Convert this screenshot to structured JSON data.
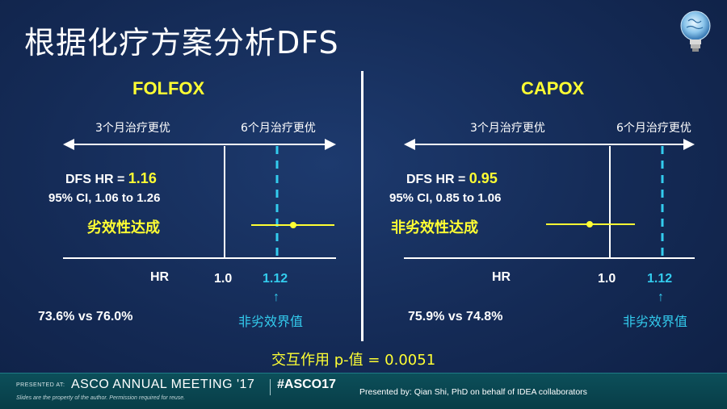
{
  "slide": {
    "title": "根据化疗方案分析DFS",
    "interaction": "交互作用 p-值 = 0.0051"
  },
  "colors": {
    "background": "#142a55",
    "highlight": "#ffff33",
    "threshold": "#33ccee",
    "text": "#ffffff",
    "footer": "#0c4f5a"
  },
  "panels": [
    {
      "title": "FOLFOX",
      "left_arrow_label": "3个月治疗更优",
      "right_arrow_label": "6个月治疗更优",
      "hr_prefix": "DFS HR = ",
      "hr_value": "1.16",
      "ci": "95% CI, 1.06 to 1.26",
      "result": "劣效性达成",
      "axis_label": "HR",
      "reference_value": "1.0",
      "threshold_value": "1.12",
      "threshold_arrow": "↑",
      "threshold_label": "非劣效界值",
      "rates": "73.6% vs 76.0%"
    },
    {
      "title": "CAPOX",
      "left_arrow_label": "3个月治疗更优",
      "right_arrow_label": "6个月治疗更优",
      "hr_prefix": "DFS HR = ",
      "hr_value": "0.95",
      "ci": "95% CI, 0.85 to 1.06",
      "result": "非劣效性达成",
      "axis_label": "HR",
      "reference_value": "1.0",
      "threshold_value": "1.12",
      "threshold_arrow": "↑",
      "threshold_label": "非劣效界值",
      "rates": "75.9% vs 74.8%"
    }
  ],
  "footer": {
    "presented_at": "PRESENTED AT:",
    "meeting": "ASCO ANNUAL MEETING '17",
    "hashtag": "#ASCO17",
    "disclaimer": "Slides are the property of the author. Permission required for reuse.",
    "presenter": "Presented by: Qian Shi, PhD on behalf of IDEA collaborators"
  }
}
